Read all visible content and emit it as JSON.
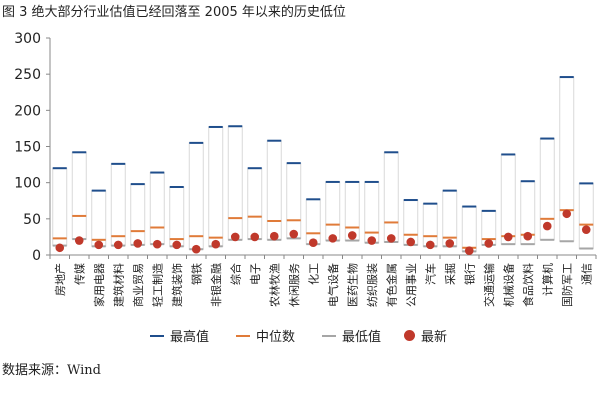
{
  "figure_title": "图 3 绝大部分行业估值已经回落至 2005 年以来的历史低位",
  "source": "数据来源：Wind",
  "chart_data": {
    "type": "range-dot",
    "title": "",
    "xlabel": "",
    "ylabel": "",
    "ylim": [
      0,
      300
    ],
    "yticks": [
      0,
      50,
      100,
      150,
      200,
      250,
      300
    ],
    "grid": false,
    "legend_position": "bottom",
    "categories": [
      "房地产",
      "传媒",
      "家用电器",
      "建筑材料",
      "商业贸易",
      "轻工制造",
      "建筑装饰",
      "钢铁",
      "非银金融",
      "综合",
      "电子",
      "农林牧渔",
      "休闲服务",
      "化工",
      "电气设备",
      "医药生物",
      "纺织服装",
      "有色金属",
      "公用事业",
      "汽车",
      "采掘",
      "银行",
      "交通运输",
      "机械设备",
      "食品饮料",
      "计算机",
      "国防军工",
      "通信"
    ],
    "series": [
      {
        "name": "最高值",
        "color": "#1f4e8c",
        "values": [
          120,
          142,
          89,
          126,
          98,
          114,
          94,
          155,
          177,
          178,
          120,
          158,
          127,
          77,
          101,
          101,
          101,
          142,
          76,
          71,
          89,
          67,
          61,
          139,
          102,
          161,
          246,
          99
        ]
      },
      {
        "name": "中位数",
        "color": "#e07b39",
        "values": [
          23,
          54,
          21,
          26,
          33,
          38,
          22,
          26,
          24,
          51,
          53,
          47,
          48,
          30,
          42,
          38,
          31,
          45,
          28,
          26,
          24,
          10,
          22,
          26,
          28,
          50,
          62,
          42
        ]
      },
      {
        "name": "最低值",
        "color": "#a6a6a6",
        "values": [
          13,
          22,
          12,
          13,
          14,
          15,
          12,
          8,
          12,
          21,
          22,
          21,
          23,
          15,
          20,
          20,
          17,
          18,
          14,
          12,
          12,
          5,
          14,
          15,
          15,
          21,
          19,
          9
        ]
      },
      {
        "name": "最新",
        "color": "#c0392b",
        "values": [
          10,
          20,
          14,
          14,
          16,
          15,
          14,
          8,
          15,
          25,
          25,
          26,
          29,
          17,
          23,
          27,
          20,
          23,
          18,
          14,
          16,
          6,
          16,
          25,
          26,
          40,
          57,
          35
        ]
      }
    ]
  }
}
